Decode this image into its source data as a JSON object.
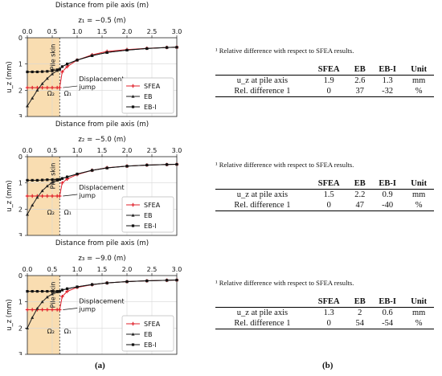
{
  "chart_data": [
    {
      "type": "line",
      "title": "Distance from pile axis (m)",
      "subtitle": "z₁ = −0.5 (m)",
      "xlabel": "Distance from pile axis (m)",
      "ylabel": "u_z (mm)",
      "xlim": [
        0,
        3.0
      ],
      "ylim": [
        3,
        0
      ],
      "y_inverted": true,
      "xticks": [
        "0.0",
        "0.5",
        "1.0",
        "1.5",
        "2.0",
        "2.5",
        "3.0"
      ],
      "yticks": [
        "0",
        "1",
        "2",
        "3"
      ],
      "region_labels": [
        "Pile skin",
        "Ω₂",
        "Ω₁"
      ],
      "pile_radius": 0.65,
      "annotation": "Displacement\njump",
      "legend_position": "lower-right",
      "grid": true,
      "series": [
        {
          "name": "SFEA",
          "color": "#e0202a",
          "x": [
            0,
            0.1,
            0.2,
            0.3,
            0.4,
            0.5,
            0.6,
            0.65,
            0.7,
            0.8,
            1.0,
            1.3,
            1.6,
            2.0,
            2.4,
            2.8,
            3.0
          ],
          "y": [
            1.9,
            1.9,
            1.9,
            1.9,
            1.9,
            1.9,
            1.9,
            1.9,
            1.3,
            1.1,
            0.85,
            0.65,
            0.52,
            0.45,
            0.4,
            0.37,
            0.36
          ]
        },
        {
          "name": "EB",
          "color": "#222222",
          "x": [
            0,
            0.1,
            0.2,
            0.3,
            0.4,
            0.5,
            0.6,
            0.65,
            0.7,
            0.8,
            1.0,
            1.3,
            1.6,
            2.0,
            2.4,
            2.8,
            3.0
          ],
          "y": [
            2.6,
            2.3,
            2.0,
            1.75,
            1.55,
            1.38,
            1.25,
            1.2,
            1.1,
            1.0,
            0.85,
            0.68,
            0.56,
            0.47,
            0.41,
            0.37,
            0.36
          ]
        },
        {
          "name": "EB-I",
          "color": "#111111",
          "x": [
            0,
            0.1,
            0.2,
            0.3,
            0.4,
            0.5,
            0.6,
            0.65,
            0.7,
            0.8,
            1.0,
            1.3,
            1.6,
            2.0,
            2.4,
            2.8,
            3.0
          ],
          "y": [
            1.3,
            1.3,
            1.3,
            1.29,
            1.28,
            1.26,
            1.22,
            1.2,
            1.1,
            1.0,
            0.85,
            0.68,
            0.56,
            0.47,
            0.41,
            0.37,
            0.36
          ]
        }
      ]
    },
    {
      "type": "line",
      "title": "Distance from pile axis (m)",
      "subtitle": "z₂ = −5.0 (m)",
      "xlabel": "Distance from pile axis (m)",
      "ylabel": "u_z (mm)",
      "xlim": [
        0,
        3.0
      ],
      "ylim": [
        3,
        0
      ],
      "y_inverted": true,
      "xticks": [
        "0.0",
        "0.5",
        "1.0",
        "1.5",
        "2.0",
        "2.5",
        "3.0"
      ],
      "yticks": [
        "0",
        "1",
        "2",
        "3"
      ],
      "region_labels": [
        "Pile skin",
        "Ω₂",
        "Ω₁"
      ],
      "pile_radius": 0.65,
      "annotation": "Displacement\njump",
      "legend_position": "lower-right",
      "grid": true,
      "series": [
        {
          "name": "SFEA",
          "color": "#e0202a",
          "x": [
            0,
            0.1,
            0.2,
            0.3,
            0.4,
            0.5,
            0.6,
            0.65,
            0.7,
            0.8,
            1.0,
            1.3,
            1.6,
            2.0,
            2.4,
            2.8,
            3.0
          ],
          "y": [
            1.5,
            1.5,
            1.5,
            1.5,
            1.5,
            1.5,
            1.5,
            1.5,
            1.0,
            0.85,
            0.68,
            0.52,
            0.42,
            0.36,
            0.32,
            0.3,
            0.29
          ]
        },
        {
          "name": "EB",
          "color": "#222222",
          "x": [
            0,
            0.1,
            0.2,
            0.3,
            0.4,
            0.5,
            0.6,
            0.65,
            0.7,
            0.8,
            1.0,
            1.3,
            1.6,
            2.0,
            2.4,
            2.8,
            3.0
          ],
          "y": [
            2.2,
            1.85,
            1.55,
            1.3,
            1.12,
            0.98,
            0.9,
            0.87,
            0.83,
            0.77,
            0.66,
            0.52,
            0.43,
            0.36,
            0.32,
            0.3,
            0.29
          ]
        },
        {
          "name": "EB-I",
          "color": "#111111",
          "x": [
            0,
            0.1,
            0.2,
            0.3,
            0.4,
            0.5,
            0.6,
            0.65,
            0.7,
            0.8,
            1.0,
            1.3,
            1.6,
            2.0,
            2.4,
            2.8,
            3.0
          ],
          "y": [
            0.9,
            0.9,
            0.9,
            0.89,
            0.88,
            0.88,
            0.87,
            0.87,
            0.83,
            0.77,
            0.66,
            0.52,
            0.43,
            0.36,
            0.32,
            0.3,
            0.29
          ]
        }
      ]
    },
    {
      "type": "line",
      "title": "Distance from pile axis (m)",
      "subtitle": "z₃ = −9.0 (m)",
      "xlabel": "Distance from pile axis (m)",
      "ylabel": "u_z (mm)",
      "xlim": [
        0,
        3.0
      ],
      "ylim": [
        3,
        0
      ],
      "y_inverted": true,
      "xticks": [
        "0.0",
        "0.5",
        "1.0",
        "1.5",
        "2.0",
        "2.5",
        "3.0"
      ],
      "yticks": [
        "0",
        "1",
        "2",
        "3"
      ],
      "region_labels": [
        "Pile skin",
        "Ω₂",
        "Ω₁"
      ],
      "pile_radius": 0.65,
      "annotation": "Displacement\njump",
      "legend_position": "lower-right",
      "grid": true,
      "series": [
        {
          "name": "SFEA",
          "color": "#e0202a",
          "x": [
            0,
            0.1,
            0.2,
            0.3,
            0.4,
            0.5,
            0.6,
            0.65,
            0.7,
            0.8,
            1.0,
            1.3,
            1.6,
            2.0,
            2.4,
            2.8,
            3.0
          ],
          "y": [
            1.3,
            1.3,
            1.3,
            1.3,
            1.3,
            1.3,
            1.3,
            1.3,
            0.8,
            0.6,
            0.45,
            0.35,
            0.28,
            0.23,
            0.2,
            0.18,
            0.17
          ]
        },
        {
          "name": "EB",
          "color": "#222222",
          "x": [
            0,
            0.1,
            0.2,
            0.3,
            0.4,
            0.5,
            0.6,
            0.65,
            0.7,
            0.8,
            1.0,
            1.3,
            1.6,
            2.0,
            2.4,
            2.8,
            3.0
          ],
          "y": [
            2.0,
            1.6,
            1.25,
            1.0,
            0.82,
            0.7,
            0.62,
            0.6,
            0.55,
            0.5,
            0.43,
            0.34,
            0.28,
            0.23,
            0.2,
            0.18,
            0.17
          ]
        },
        {
          "name": "EB-I",
          "color": "#111111",
          "x": [
            0,
            0.1,
            0.2,
            0.3,
            0.4,
            0.5,
            0.6,
            0.65,
            0.7,
            0.8,
            1.0,
            1.3,
            1.6,
            2.0,
            2.4,
            2.8,
            3.0
          ],
          "y": [
            0.6,
            0.6,
            0.6,
            0.6,
            0.6,
            0.6,
            0.6,
            0.6,
            0.55,
            0.5,
            0.43,
            0.34,
            0.28,
            0.23,
            0.2,
            0.18,
            0.17
          ]
        }
      ]
    }
  ],
  "tables": [
    {
      "note": "¹ Relative difference with respect to SFEA results.",
      "headers": [
        "",
        "SFEA",
        "EB",
        "EB-I",
        "Unit"
      ],
      "row1": {
        "label": "u_z at pile axis",
        "sfea": "1.9",
        "eb": "2.6",
        "ebi": "1.3",
        "unit": "mm"
      },
      "row2": {
        "label": "Rel. difference 1",
        "sfea": "0",
        "eb": "37",
        "ebi": "-32",
        "unit": "%"
      }
    },
    {
      "note": "¹ Relative difference with respect to SFEA results.",
      "headers": [
        "",
        "SFEA",
        "EB",
        "EB-I",
        "Unit"
      ],
      "row1": {
        "label": "u_z at pile axis",
        "sfea": "1.5",
        "eb": "2.2",
        "ebi": "0.9",
        "unit": "mm"
      },
      "row2": {
        "label": "Rel. difference 1",
        "sfea": "0",
        "eb": "47",
        "ebi": "-40",
        "unit": "%"
      }
    },
    {
      "note": "¹ Relative difference with respect to SFEA results.",
      "headers": [
        "",
        "SFEA",
        "EB",
        "EB-I",
        "Unit"
      ],
      "row1": {
        "label": "u_z at pile axis",
        "sfea": "1.3",
        "eb": "2",
        "ebi": "0.6",
        "unit": "mm"
      },
      "row2": {
        "label": "Rel. difference 1",
        "sfea": "0",
        "eb": "54",
        "ebi": "-54",
        "unit": "%"
      }
    }
  ],
  "subfigure_labels": {
    "a": "(a)",
    "b": "(b)"
  }
}
